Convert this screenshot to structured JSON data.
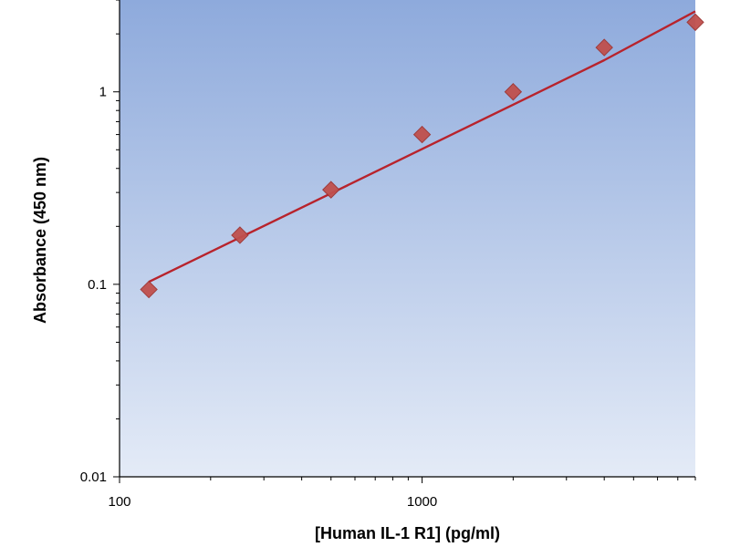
{
  "chart_data": {
    "type": "scatter",
    "title": "",
    "xlabel": "[Human IL-1 R1] (pg/ml)",
    "ylabel": "Absorbance (450 nm)",
    "x_scale": "log",
    "y_scale": "log",
    "xlim": [
      100,
      8000
    ],
    "ylim": [
      0.01,
      3
    ],
    "x_ticks": [
      {
        "value": 100,
        "label": "100"
      },
      {
        "value": 1000,
        "label": "1000"
      }
    ],
    "y_ticks": [
      {
        "value": 0.01,
        "label": "0.01"
      },
      {
        "value": 0.1,
        "label": "0.1"
      },
      {
        "value": 1,
        "label": "1"
      }
    ],
    "grid": false,
    "legend": "none",
    "series": [
      {
        "type": "scatter",
        "marker": "diamond",
        "color": "#c0504d",
        "x": [
          125,
          250,
          500,
          1000,
          2000,
          4000,
          8000
        ],
        "y": [
          0.094,
          0.18,
          0.31,
          0.6,
          1.0,
          1.7,
          2.3
        ]
      },
      {
        "type": "line",
        "color": "#b8232c",
        "x": [
          125,
          250,
          500,
          1000,
          2000,
          4000,
          8000
        ],
        "y": [
          0.103,
          0.175,
          0.297,
          0.505,
          0.858,
          1.46,
          2.62
        ]
      }
    ],
    "colors": {
      "plot_bg_top": "#8eaadc",
      "plot_bg_bottom": "#e4ebf7",
      "axis": "#000000"
    }
  }
}
